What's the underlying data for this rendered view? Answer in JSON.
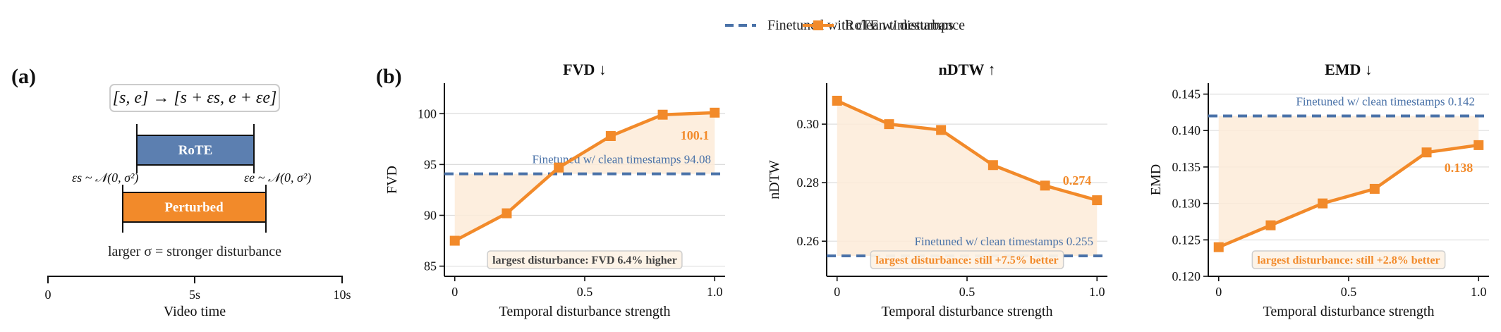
{
  "legend": {
    "clean_label": "Finetuned with clean timestamps",
    "rote_label": "RoTE w/ disturbance"
  },
  "colors": {
    "clean": "#4a72a8",
    "rote": "#f28a2a",
    "shade": "#fdebd8",
    "grid": "#dddddd"
  },
  "panel_a": {
    "tag": "(a)",
    "formula": "[s, e] → [s + εs, e + εe]",
    "rote_label": "RoTE",
    "perturbed_label": "Perturbed",
    "left_noise": "εs ~ 𝒩(0, σ²)",
    "right_noise": "εe ~ 𝒩(0, σ²)",
    "caption": "larger σ = stronger disturbance",
    "axis_label": "Video time",
    "ticks": [
      "0",
      "5s",
      "10s"
    ]
  },
  "panel_b_tag": "(b)",
  "chart_data": [
    {
      "type": "line",
      "title": "FVD ↓",
      "xlabel": "Temporal disturbance strength",
      "ylabel": "FVD",
      "x": [
        0,
        0.2,
        0.4,
        0.6,
        0.8,
        1.0
      ],
      "series": [
        {
          "name": "RoTE w/ disturbance",
          "values": [
            87.5,
            90.2,
            94.7,
            97.8,
            99.9,
            100.1
          ]
        },
        {
          "name": "Finetuned with clean timestamps",
          "values": [
            94.08,
            94.08,
            94.08,
            94.08,
            94.08,
            94.08
          ]
        }
      ],
      "xlim": [
        -0.04,
        1.04
      ],
      "ylim": [
        84,
        103
      ],
      "xticks": [
        0,
        0.5,
        1.0
      ],
      "xtick_labels": [
        "0",
        "0.5",
        "1.0"
      ],
      "yticks": [
        85,
        90,
        95,
        100
      ],
      "ytick_labels": [
        "85",
        "90",
        "95",
        "100"
      ],
      "end_label": "100.1",
      "baseline_label": "Finetuned w/ clean timestamps 94.08",
      "note": "largest disturbance: FVD 6.4% higher",
      "note_style": "gray",
      "baseline_label_pos": "above",
      "end_label_pos": "below",
      "grid": true
    },
    {
      "type": "line",
      "title": "nDTW ↑",
      "xlabel": "Temporal disturbance strength",
      "ylabel": "nDTW",
      "x": [
        0,
        0.2,
        0.4,
        0.6,
        0.8,
        1.0
      ],
      "series": [
        {
          "name": "RoTE w/ disturbance",
          "values": [
            0.308,
            0.3,
            0.298,
            0.286,
            0.279,
            0.274
          ]
        },
        {
          "name": "Finetuned with clean timestamps",
          "values": [
            0.255,
            0.255,
            0.255,
            0.255,
            0.255,
            0.255
          ]
        }
      ],
      "xlim": [
        -0.04,
        1.04
      ],
      "ylim": [
        0.248,
        0.314
      ],
      "xticks": [
        0,
        0.5,
        1.0
      ],
      "xtick_labels": [
        "0",
        "0.5",
        "1.0"
      ],
      "yticks": [
        0.26,
        0.28,
        0.3
      ],
      "ytick_labels": [
        "0.26",
        "0.28",
        "0.30"
      ],
      "end_label": "0.274",
      "baseline_label": "Finetuned w/ clean timestamps 0.255",
      "note": "largest disturbance: still +7.5% better",
      "note_style": "orange",
      "baseline_label_pos": "above",
      "end_label_pos": "above",
      "grid": true
    },
    {
      "type": "line",
      "title": "EMD ↓",
      "xlabel": "Temporal disturbance strength",
      "ylabel": "EMD",
      "x": [
        0,
        0.2,
        0.4,
        0.6,
        0.8,
        1.0
      ],
      "series": [
        {
          "name": "RoTE w/ disturbance",
          "values": [
            0.124,
            0.127,
            0.13,
            0.132,
            0.137,
            0.138
          ]
        },
        {
          "name": "Finetuned with clean timestamps",
          "values": [
            0.142,
            0.142,
            0.142,
            0.142,
            0.142,
            0.142
          ]
        }
      ],
      "xlim": [
        -0.04,
        1.04
      ],
      "ylim": [
        0.12,
        0.1465
      ],
      "xticks": [
        0,
        0.5,
        1.0
      ],
      "xtick_labels": [
        "0",
        "0.5",
        "1.0"
      ],
      "yticks": [
        0.12,
        0.125,
        0.13,
        0.135,
        0.14,
        0.145
      ],
      "ytick_labels": [
        "0.120",
        "0.125",
        "0.130",
        "0.135",
        "0.140",
        "0.145"
      ],
      "end_label": "0.138",
      "baseline_label": "Finetuned w/ clean timestamps 0.142",
      "note": "largest disturbance: still +2.8% better",
      "note_style": "orange",
      "baseline_label_pos": "above",
      "end_label_pos": "below",
      "grid": true
    }
  ]
}
